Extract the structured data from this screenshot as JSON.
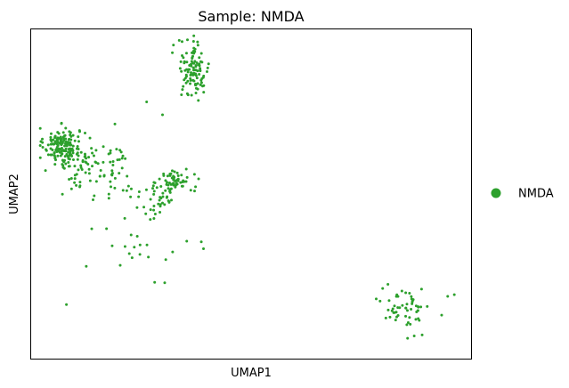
{
  "chart_data": {
    "type": "scatter",
    "title": "Sample: NMDA",
    "xlabel": "UMAP1",
    "ylabel": "UMAP2",
    "xlim": [
      0,
      100
    ],
    "ylim": [
      0,
      100
    ],
    "grid": false,
    "ticks_shown": false,
    "legend": {
      "placement": "right",
      "entries": [
        {
          "label": "NMDA",
          "color": "#2ca02c"
        }
      ]
    },
    "series": [
      {
        "name": "NMDA",
        "color": "#2ca02c",
        "clusters": [
          {
            "center": [
              7,
              65
            ],
            "spread": [
              2.0,
              2.5
            ],
            "count": 150
          },
          {
            "center": [
              13,
              59
            ],
            "spread": [
              5.0,
              3.5
            ],
            "count": 80
          },
          {
            "center": [
              19,
              52
            ],
            "spread": [
              3.5,
              5.5
            ],
            "count": 25
          },
          {
            "center": [
              33,
              54
            ],
            "spread": [
              2.0,
              1.8
            ],
            "count": 60
          },
          {
            "center": [
              29,
              48
            ],
            "spread": [
              1.8,
              3.5
            ],
            "count": 35
          },
          {
            "center": [
              37,
              88
            ],
            "spread": [
              1.8,
              4.5
            ],
            "count": 110
          },
          {
            "center": [
              85,
              16
            ],
            "spread": [
              2.8,
              3.0
            ],
            "count": 55
          },
          {
            "center": [
              26,
              34
            ],
            "spread": [
              5.0,
              5.0
            ],
            "count": 14
          }
        ],
        "points": [
          [
            26.3,
            77.9
          ],
          [
            19.1,
            71.2
          ],
          [
            29.9,
            74.0
          ],
          [
            8.1,
            16.5
          ],
          [
            30.4,
            23.1
          ],
          [
            12.6,
            28.1
          ],
          [
            20.3,
            28.4
          ],
          [
            23.0,
            30.7
          ],
          [
            21.4,
            34.1
          ],
          [
            17.2,
            39.5
          ],
          [
            23.5,
            33.9
          ],
          [
            35.4,
            35.7
          ],
          [
            38.7,
            35.5
          ],
          [
            87.0,
            7.0
          ],
          [
            88.8,
            7.3
          ],
          [
            85.5,
            6.3
          ],
          [
            96.1,
            19.5
          ],
          [
            94.6,
            19.0
          ]
        ]
      }
    ]
  }
}
